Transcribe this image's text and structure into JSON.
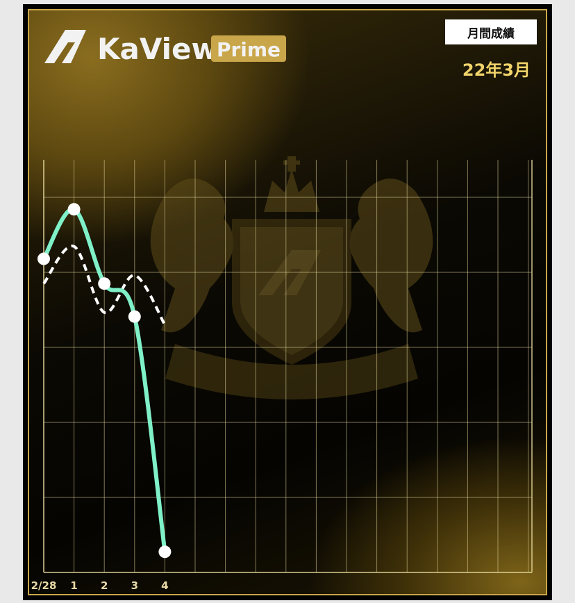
{
  "header": {
    "brand_name": "KaView",
    "brand_badge": "Prime",
    "badge_label": "月間成績",
    "period": "22年3月"
  },
  "colors": {
    "primary_series": "#7ff0c8",
    "secondary_series": "#ffffff",
    "grid": "#e3d79a",
    "gold": "#c9a64a"
  },
  "chart_data": {
    "type": "line",
    "categories": [
      "2/28",
      "1",
      "2",
      "3",
      "4"
    ],
    "ylim": [
      0,
      100
    ],
    "grid": true,
    "series": [
      {
        "style": "solid",
        "values": [
          76,
          88,
          70,
          62,
          5
        ]
      },
      {
        "style": "dashed",
        "values": [
          70,
          79,
          63,
          72,
          60
        ]
      }
    ]
  }
}
